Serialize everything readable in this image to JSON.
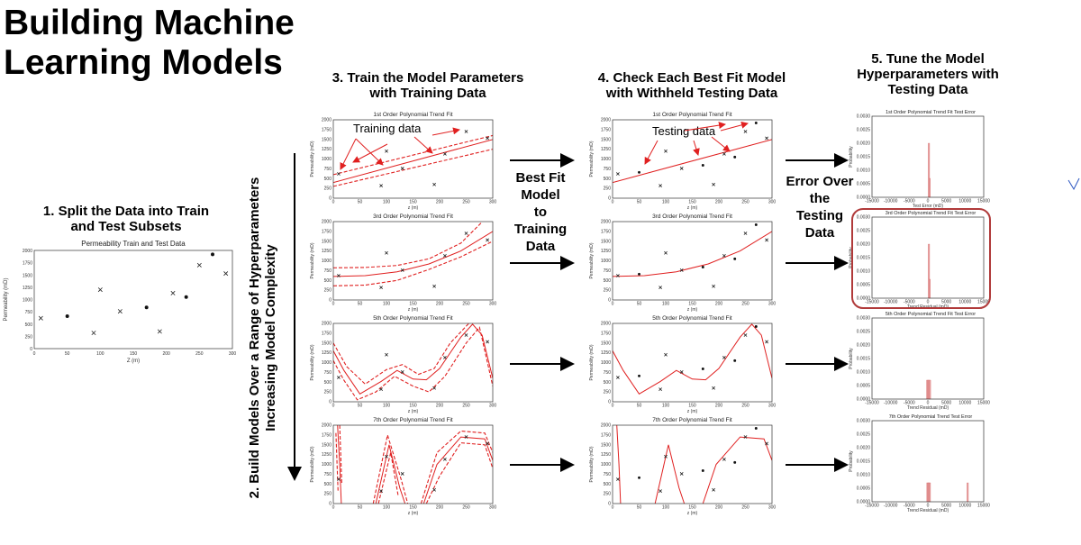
{
  "title_line1": "Building Machine",
  "title_line2": "Learning Models",
  "step1": {
    "line1": "1. Split the Data into Train",
    "line2": "and Test Subsets",
    "chart_title": "Permeability Train and Test Data",
    "xlabel": "Z (m)",
    "ylabel": "Permeability (mD)"
  },
  "step2": {
    "line1": "2. Build Models Over a Range of Hyperparameters",
    "line2": "Increasing Model Complexity"
  },
  "step3": {
    "line1": "3. Train the Model Parameters",
    "line2": "with Training Data",
    "annotation": "Training data"
  },
  "step4": {
    "line1": "4. Check Each Best Fit Model",
    "line2": "with Withheld Testing Data",
    "annotation": "Testing data"
  },
  "step5": {
    "line1": "5. Tune the Model",
    "line2": "Hyperparameters with",
    "line3": "Testing Data"
  },
  "best_fit": {
    "l1": "Best Fit",
    "l2": "Model",
    "l3": "to",
    "l4": "Training",
    "l5": "Data"
  },
  "error_over": {
    "l1": "Error Over",
    "l2": "the",
    "l3": "Testing",
    "l4": "Data"
  },
  "fit_titles": [
    "1st Order Polynomial Trend Fit",
    "3rd Order Polynomial Trend Fit",
    "5th Order Polynomial Trend Fit",
    "7th Order Polynomial Trend Fit"
  ],
  "err_titles": [
    "1st Order Polynomial Trend Fit Test Error",
    "3rd Order Polynomial Trend Fit Test Error",
    "5th Order Polynomial Trend Fit Test Error",
    "7th Order Polynomial Trend Test Error"
  ],
  "err_xlabels": [
    "Test Error (mD)",
    "Trend Residual (mD)",
    "Trend Residual (mD)",
    "Trend Residual (mD)"
  ],
  "fit_xlabel": "z (m)",
  "fit_ylabel": "Permeability (mD)",
  "err_ylabel": "Probability",
  "colors": {
    "red": "#e02020",
    "box": "#b03a3a"
  },
  "chart_data": [
    {
      "type": "scatter",
      "title": "Permeability Train and Test Data",
      "xlabel": "Z (m)",
      "ylabel": "Permeability (mD)",
      "xlim": [
        0,
        300
      ],
      "ylim": [
        0,
        2000
      ],
      "xticks": [
        0,
        50,
        100,
        150,
        200,
        250,
        300
      ],
      "yticks": [
        0,
        250,
        500,
        750,
        1000,
        1250,
        1500,
        1750,
        2000
      ],
      "series": [
        {
          "name": "train",
          "marker": "x",
          "points": [
            [
              10,
              620
            ],
            [
              90,
              320
            ],
            [
              100,
              1200
            ],
            [
              130,
              760
            ],
            [
              190,
              350
            ],
            [
              210,
              1130
            ],
            [
              250,
              1700
            ],
            [
              290,
              1530
            ]
          ]
        },
        {
          "name": "test",
          "marker": "dot",
          "points": [
            [
              50,
              660
            ],
            [
              170,
              840
            ],
            [
              230,
              1050
            ],
            [
              270,
              1920
            ]
          ]
        }
      ]
    },
    {
      "type": "histogram",
      "titles": [
        "1st Order Polynomial Trend Fit Test Error",
        "3rd Order Polynomial Trend Fit Test Error",
        "5th Order Polynomial Trend Fit Test Error",
        "7th Order Polynomial Trend Test Error"
      ],
      "xticks": [
        "-15000",
        "-10000",
        "-5000",
        "0",
        "5000",
        "10000",
        "15000"
      ],
      "yticks": [
        "0.0000",
        "0.0005",
        "0.0010",
        "0.0015",
        "0.0020",
        "0.0025",
        "0.0030"
      ],
      "ylim": [
        0,
        0.003
      ]
    }
  ]
}
